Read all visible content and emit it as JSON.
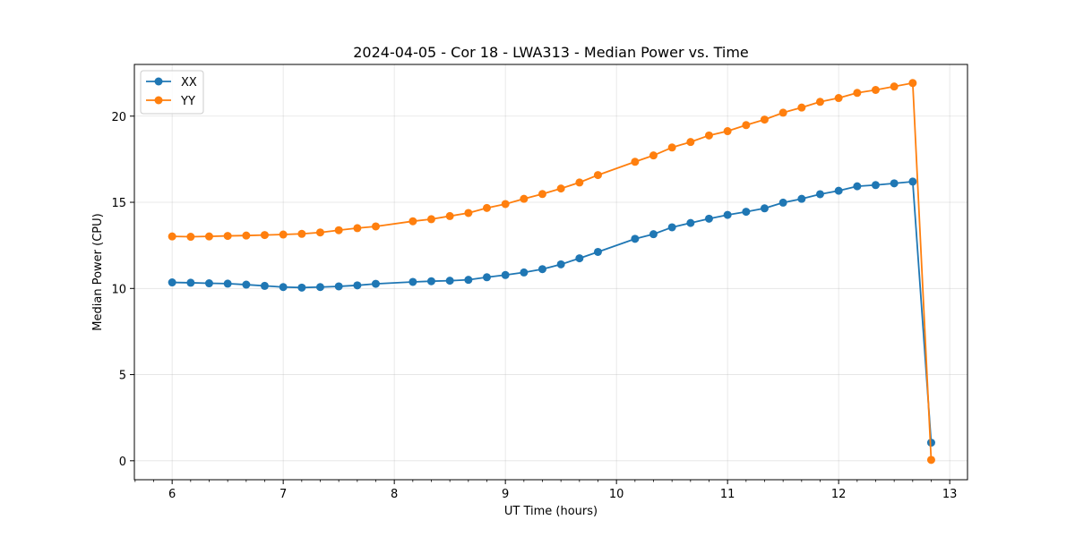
{
  "chart_data": {
    "type": "line",
    "title": "2024-04-05 - Cor 18 - LWA313 - Median Power vs. Time",
    "xlabel": "UT Time (hours)",
    "ylabel": "Median Power (CPU)",
    "xlim": [
      5.66,
      13.16
    ],
    "ylim": [
      -1.1,
      23.0
    ],
    "xticks": [
      6,
      7,
      8,
      9,
      10,
      11,
      12,
      13
    ],
    "yticks": [
      0,
      5,
      10,
      15,
      20
    ],
    "grid": true,
    "legend": "top-left",
    "x": [
      6.0,
      6.167,
      6.333,
      6.5,
      6.667,
      6.833,
      7.0,
      7.167,
      7.333,
      7.5,
      7.667,
      7.833,
      8.167,
      8.333,
      8.5,
      8.667,
      8.833,
      9.0,
      9.167,
      9.333,
      9.5,
      9.667,
      9.833,
      10.167,
      10.333,
      10.5,
      10.667,
      10.833,
      11.0,
      11.167,
      11.333,
      11.5,
      11.667,
      11.833,
      12.0,
      12.167,
      12.333,
      12.5,
      12.667,
      12.833
    ],
    "series": [
      {
        "name": "XX",
        "color": "#1f77b4",
        "values": [
          10.35,
          10.33,
          10.3,
          10.28,
          10.22,
          10.15,
          10.08,
          10.05,
          10.08,
          10.12,
          10.18,
          10.27,
          10.38,
          10.42,
          10.45,
          10.5,
          10.65,
          10.78,
          10.93,
          11.12,
          11.4,
          11.75,
          12.12,
          12.88,
          13.15,
          13.55,
          13.8,
          14.05,
          14.27,
          14.45,
          14.65,
          14.98,
          15.2,
          15.47,
          15.67,
          15.93,
          16.0,
          16.1,
          16.2,
          1.05
        ]
      },
      {
        "name": "YY",
        "color": "#ff7f0e",
        "values": [
          13.02,
          13.0,
          13.02,
          13.05,
          13.07,
          13.1,
          13.13,
          13.17,
          13.25,
          13.38,
          13.5,
          13.6,
          13.9,
          14.02,
          14.2,
          14.38,
          14.67,
          14.9,
          15.2,
          15.48,
          15.8,
          16.15,
          16.58,
          17.35,
          17.72,
          18.18,
          18.5,
          18.88,
          19.13,
          19.48,
          19.8,
          20.2,
          20.5,
          20.83,
          21.05,
          21.35,
          21.52,
          21.72,
          21.92,
          0.05
        ]
      }
    ]
  }
}
